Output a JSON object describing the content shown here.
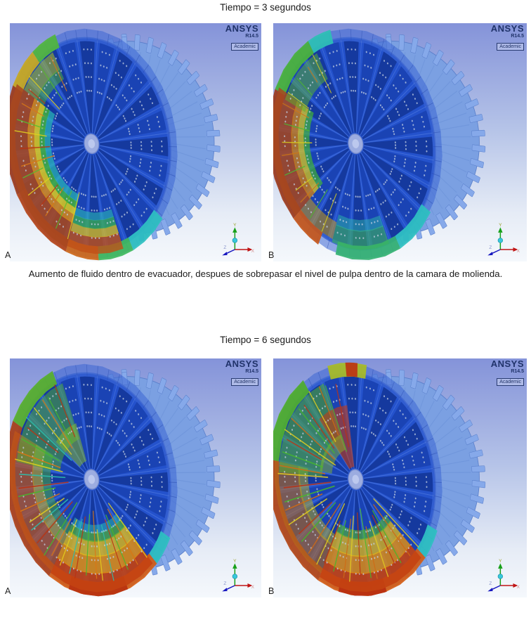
{
  "figures": [
    {
      "title": "Tiempo = 3 segundos",
      "caption": "Aumento de fluido dentro de evacuador, despues de sobrepasar el nivel de pulpa dentro de la camara de molienda.",
      "panels": [
        {
          "label": "A"
        },
        {
          "label": "B"
        }
      ]
    },
    {
      "title": "Tiempo = 6 segundos",
      "panels": [
        {
          "label": "A"
        },
        {
          "label": "B"
        }
      ]
    }
  ],
  "ansys_logo": {
    "brand": "ANSYS",
    "version": "R14.5",
    "edition": "Academic"
  },
  "triad": {
    "x": "X",
    "y": "Y",
    "z": "Z"
  },
  "palette": {
    "background_top": "#8493d9",
    "background_mid": "#b6c4e8",
    "background_bottom": "#f5f8fc",
    "disc_blue": "#2452cc",
    "channel_blue_a": "#1a43b4",
    "channel_blue_b": "#15399e",
    "rim_blue": "#7ba0e2",
    "rim_edge": "#5b80cc",
    "fin_blue": "#86a9ea",
    "spoke_blue": "#5b84e4",
    "hub_blue": "#9cace0",
    "hot_red": "#c03414",
    "dark_red": "#a8481f",
    "orange": "#dc8c16",
    "yellow": "#e0d01e",
    "green": "#48b82c",
    "cyan": "#2cc0c0",
    "ansys_navy": "#20336a"
  }
}
